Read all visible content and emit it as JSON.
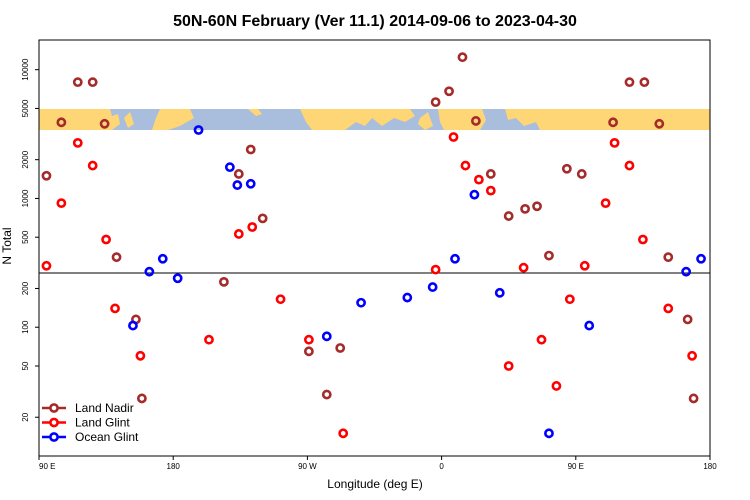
{
  "chart_data": {
    "type": "scatter",
    "title": "50N-60N February (Ver 11.1)   2014-09-06 to 2023-04-30",
    "xlabel": "Longitude (deg E)",
    "ylabel": "N Total",
    "xscale": "linear",
    "yscale": "log",
    "xlim": [
      90,
      540
    ],
    "ylim": [
      10,
      17000
    ],
    "x_ticks": [
      {
        "value": 90,
        "label": "90 E"
      },
      {
        "value": 180,
        "label": "180"
      },
      {
        "value": 270,
        "label": "90 W"
      },
      {
        "value": 360,
        "label": "0"
      },
      {
        "value": 450,
        "label": "90 E"
      },
      {
        "value": 540,
        "label": "180"
      }
    ],
    "y_ticks": [
      {
        "value": 20,
        "label": "20"
      },
      {
        "value": 50,
        "label": "50"
      },
      {
        "value": 100,
        "label": "100"
      },
      {
        "value": 200,
        "label": "200"
      },
      {
        "value": 500,
        "label": "500"
      },
      {
        "value": 1000,
        "label": "1000"
      },
      {
        "value": 2000,
        "label": "2000"
      },
      {
        "value": 5000,
        "label": "5000"
      },
      {
        "value": 10000,
        "label": "10000"
      }
    ],
    "reference_line_y": 250,
    "map_band": {
      "y_range": [
        3000,
        5000
      ],
      "ocean_color": "#a9bddc",
      "land_color": "#ffd675"
    },
    "legend_position": "bottom-left",
    "series": [
      {
        "name": "Land Nadir",
        "color": "#a52a2a",
        "points": [
          [
            95,
            1500
          ],
          [
            105,
            3900
          ],
          [
            116,
            8000
          ],
          [
            126,
            8000
          ],
          [
            134,
            3800
          ],
          [
            142,
            350
          ],
          [
            155,
            115
          ],
          [
            159,
            28
          ],
          [
            214,
            225
          ],
          [
            224,
            1550
          ],
          [
            232,
            2400
          ],
          [
            240,
            700
          ],
          [
            271,
            65
          ],
          [
            283,
            30
          ],
          [
            292,
            69
          ],
          [
            356,
            5600
          ],
          [
            365,
            6800
          ],
          [
            374,
            12500
          ],
          [
            383,
            4000
          ],
          [
            393,
            1550
          ],
          [
            405,
            730
          ],
          [
            416,
            830
          ],
          [
            424,
            870
          ],
          [
            432,
            360
          ],
          [
            444,
            1700
          ],
          [
            454,
            1550
          ],
          [
            475,
            3900
          ],
          [
            486,
            8000
          ],
          [
            496,
            8000
          ],
          [
            506,
            3800
          ],
          [
            512,
            350
          ],
          [
            525,
            115
          ],
          [
            529,
            28
          ]
        ]
      },
      {
        "name": "Land Glint",
        "color": "#ff0000",
        "points": [
          [
            95,
            300
          ],
          [
            105,
            920
          ],
          [
            116,
            2700
          ],
          [
            126,
            1800
          ],
          [
            135,
            480
          ],
          [
            141,
            140
          ],
          [
            158,
            60
          ],
          [
            204,
            80
          ],
          [
            224,
            530
          ],
          [
            233,
            600
          ],
          [
            252,
            165
          ],
          [
            271,
            80
          ],
          [
            294,
            15
          ],
          [
            356,
            280
          ],
          [
            368,
            3000
          ],
          [
            376,
            1800
          ],
          [
            385,
            1400
          ],
          [
            393,
            1150
          ],
          [
            405,
            50
          ],
          [
            415,
            290
          ],
          [
            427,
            80
          ],
          [
            437,
            35
          ],
          [
            446,
            165
          ],
          [
            456,
            300
          ],
          [
            470,
            920
          ],
          [
            476,
            2700
          ],
          [
            486,
            1800
          ],
          [
            495,
            480
          ],
          [
            512,
            140
          ],
          [
            528,
            60
          ]
        ]
      },
      {
        "name": "Ocean Glint",
        "color": "#0000ff",
        "points": [
          [
            153,
            103
          ],
          [
            164,
            270
          ],
          [
            173,
            340
          ],
          [
            183,
            240
          ],
          [
            197,
            3400
          ],
          [
            218,
            1750
          ],
          [
            223,
            1270
          ],
          [
            232,
            1300
          ],
          [
            283,
            85
          ],
          [
            306,
            155
          ],
          [
            337,
            170
          ],
          [
            354,
            205
          ],
          [
            369,
            340
          ],
          [
            382,
            1070
          ],
          [
            399,
            185
          ],
          [
            432,
            15
          ],
          [
            459,
            103
          ],
          [
            524,
            270
          ],
          [
            534,
            340
          ]
        ]
      }
    ]
  }
}
